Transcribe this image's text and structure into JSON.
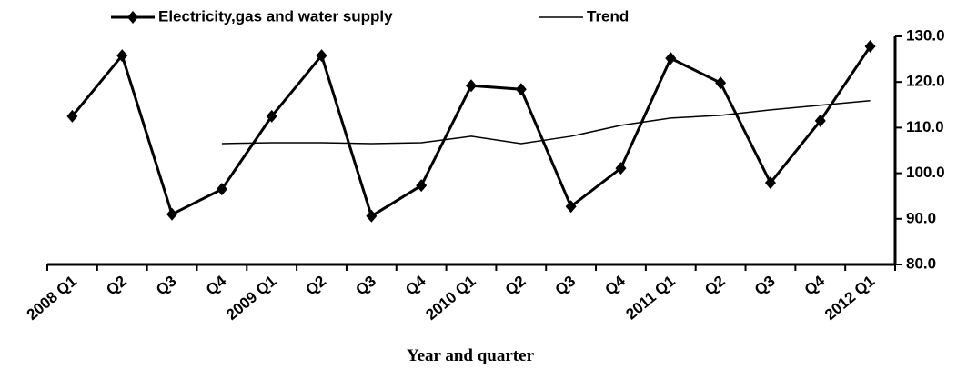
{
  "chart_data": {
    "type": "line",
    "x_label": "Year and quarter",
    "categories": [
      "2008 Q1",
      "Q2",
      "Q3",
      "Q4",
      "2009 Q1",
      "Q2",
      "Q3",
      "Q4",
      "2010 Q1",
      "Q2",
      "Q3",
      "Q4",
      "2011 Q1",
      "Q2",
      "Q3",
      "Q4",
      "2012 Q1"
    ],
    "series": [
      {
        "name": "Electricity,gas and water supply",
        "color": "#000000",
        "marker": "diamond",
        "values": [
          112.5,
          125.8,
          91.0,
          96.5,
          112.5,
          125.8,
          90.6,
          97.3,
          119.2,
          118.4,
          92.7,
          101.1,
          125.2,
          119.8,
          97.9,
          111.5,
          127.8
        ]
      },
      {
        "name": "Trend",
        "color": "#000000",
        "values": [
          null,
          null,
          null,
          106.5,
          106.7,
          106.7,
          106.5,
          106.7,
          108.1,
          106.5,
          108.1,
          110.5,
          112.1,
          112.7,
          113.9,
          114.9,
          115.9
        ]
      }
    ],
    "ylim": [
      80,
      130
    ],
    "yticks": [
      {
        "value": 80,
        "label": "80.0"
      },
      {
        "value": 90,
        "label": "90.0"
      },
      {
        "value": 100,
        "label": "100.0"
      },
      {
        "value": 110,
        "label": "110.0"
      },
      {
        "value": 120,
        "label": "120.0"
      },
      {
        "value": 130,
        "label": "130.0"
      }
    ],
    "y_axis_side": "right",
    "grid": false,
    "legend": "top"
  }
}
